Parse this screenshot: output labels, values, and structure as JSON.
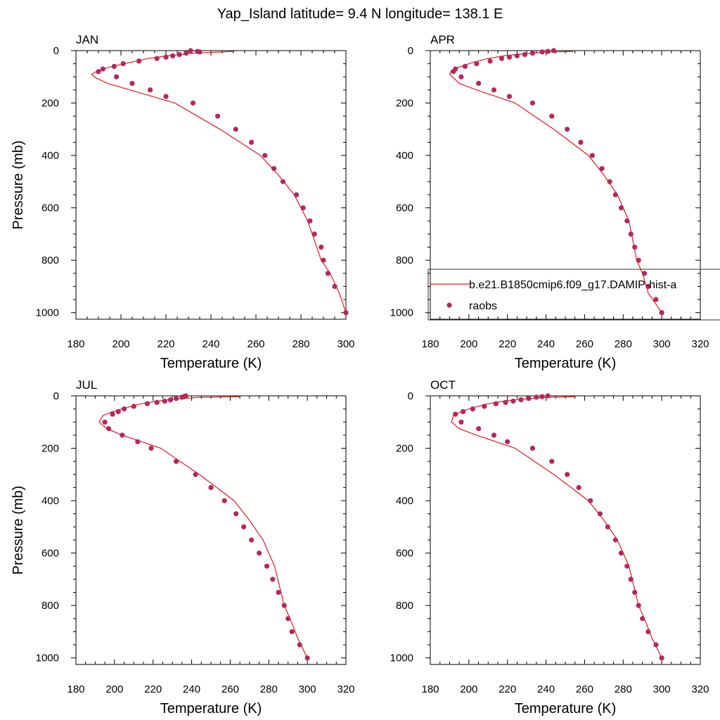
{
  "title": "Yap_Island  latitude= 9.4 N longitude= 138.1 E",
  "colors": {
    "model": "#e31a1c",
    "obs": "#b5285a"
  },
  "legend": {
    "model_label": "b.e21.B1850cmip6.f09_g17.DAMIP-hist-a",
    "obs_label": "raobs"
  },
  "chart_data": [
    {
      "type": "line",
      "panel_label": "JAN",
      "xlabel": "Temperature (K)",
      "ylabel": "Pressure (mb)",
      "xlim": [
        180,
        300
      ],
      "ylim": [
        1025,
        0
      ],
      "xticks": [
        180,
        200,
        220,
        240,
        260,
        280,
        300
      ],
      "yticks": [
        0,
        200,
        400,
        600,
        800,
        1000
      ],
      "series": [
        {
          "name": "b.e21.B1850cmip6.f09_g17.DAMIP-hist-a",
          "kind": "line",
          "x": [
            250,
            232,
            220,
            212,
            204,
            196,
            190,
            187,
            188,
            194,
            204,
            214,
            224,
            234,
            244,
            253,
            262,
            270,
            277,
            283,
            289,
            293,
            297,
            300
          ],
          "y": [
            3,
            10,
            20,
            30,
            45,
            60,
            75,
            90,
            100,
            125,
            150,
            175,
            200,
            250,
            300,
            350,
            400,
            475,
            550,
            650,
            800,
            850,
            925,
            1000
          ]
        },
        {
          "name": "raobs",
          "kind": "scatter",
          "x": [
            235,
            234,
            231,
            229,
            226,
            223,
            220,
            216,
            208,
            201,
            197,
            192,
            190,
            198,
            205,
            213,
            220,
            232,
            243,
            251,
            258,
            264,
            268,
            272,
            278,
            281,
            284,
            286,
            289,
            290,
            292,
            295,
            300
          ],
          "y": [
            5,
            3,
            0,
            10,
            15,
            20,
            25,
            30,
            40,
            50,
            60,
            70,
            80,
            100,
            125,
            150,
            175,
            200,
            250,
            300,
            350,
            400,
            450,
            500,
            550,
            600,
            650,
            700,
            750,
            800,
            850,
            900,
            1000
          ]
        }
      ]
    },
    {
      "type": "line",
      "panel_label": "APR",
      "xlabel": "Temperature (K)",
      "ylabel": "",
      "xlim": [
        180,
        320
      ],
      "ylim": [
        1025,
        0
      ],
      "xticks": [
        180,
        200,
        220,
        240,
        260,
        280,
        300,
        320
      ],
      "yticks": [
        0,
        200,
        400,
        600,
        800,
        1000
      ],
      "series": [
        {
          "name": "b.e21.B1850cmip6.f09_g17.DAMIP-hist-a",
          "kind": "line",
          "x": [
            254,
            240,
            228,
            218,
            210,
            202,
            196,
            191,
            190,
            195,
            204,
            214,
            224,
            234,
            244,
            253,
            262,
            270,
            277,
            283,
            287,
            290,
            293,
            300
          ],
          "y": [
            3,
            6,
            12,
            20,
            30,
            45,
            60,
            75,
            90,
            125,
            150,
            175,
            200,
            250,
            300,
            350,
            400,
            475,
            550,
            650,
            800,
            850,
            925,
            1000
          ]
        },
        {
          "name": "raobs",
          "kind": "scatter",
          "x": [
            244,
            241,
            238,
            233,
            229,
            225,
            221,
            217,
            211,
            204,
            198,
            193,
            192,
            196,
            205,
            213,
            221,
            233,
            243,
            251,
            258,
            264,
            269,
            273,
            276,
            279,
            282,
            284,
            286,
            288,
            291,
            293,
            297,
            300
          ],
          "y": [
            0,
            3,
            5,
            10,
            15,
            20,
            25,
            30,
            40,
            50,
            60,
            70,
            80,
            100,
            125,
            150,
            175,
            200,
            250,
            300,
            350,
            400,
            450,
            500,
            550,
            600,
            650,
            700,
            750,
            800,
            850,
            900,
            950,
            1000
          ]
        }
      ]
    },
    {
      "type": "line",
      "panel_label": "JUL",
      "xlabel": "Temperature (K)",
      "ylabel": "Pressure (mb)",
      "xlim": [
        180,
        320
      ],
      "ylim": [
        1025,
        0
      ],
      "xticks": [
        180,
        200,
        220,
        240,
        260,
        280,
        300,
        320
      ],
      "yticks": [
        0,
        200,
        400,
        600,
        800,
        1000
      ],
      "series": [
        {
          "name": "b.e21.B1850cmip6.f09_g17.DAMIP-hist-a",
          "kind": "line",
          "x": [
            265,
            244,
            232,
            222,
            214,
            206,
            199,
            194,
            192,
            196,
            204,
            214,
            224,
            234,
            244,
            253,
            262,
            270,
            277,
            283,
            288,
            291,
            295,
            300
          ],
          "y": [
            3,
            6,
            12,
            20,
            30,
            45,
            60,
            75,
            100,
            125,
            150,
            175,
            200,
            250,
            300,
            350,
            400,
            475,
            550,
            650,
            800,
            850,
            925,
            1000
          ]
        },
        {
          "name": "raobs",
          "kind": "scatter",
          "x": [
            237,
            236,
            235,
            232,
            229,
            226,
            222,
            217,
            210,
            205,
            202,
            199,
            195,
            197,
            204,
            212,
            219,
            232,
            242,
            250,
            257,
            263,
            267,
            271,
            275,
            279,
            282,
            285,
            288,
            290,
            292,
            296,
            300
          ],
          "y": [
            0,
            3,
            5,
            10,
            15,
            20,
            25,
            30,
            40,
            50,
            60,
            70,
            100,
            125,
            150,
            175,
            200,
            250,
            300,
            350,
            400,
            450,
            500,
            550,
            600,
            650,
            700,
            750,
            800,
            850,
            900,
            950,
            1000
          ]
        }
      ]
    },
    {
      "type": "line",
      "panel_label": "OCT",
      "xlabel": "Temperature (K)",
      "ylabel": "",
      "xlim": [
        180,
        320
      ],
      "ylim": [
        1025,
        0
      ],
      "xticks": [
        180,
        200,
        220,
        240,
        260,
        280,
        300,
        320
      ],
      "yticks": [
        0,
        200,
        400,
        600,
        800,
        1000
      ],
      "series": [
        {
          "name": "b.e21.B1850cmip6.f09_g17.DAMIP-hist-a",
          "kind": "line",
          "x": [
            255,
            240,
            228,
            218,
            210,
            202,
            196,
            192,
            191,
            195,
            204,
            214,
            224,
            234,
            244,
            253,
            262,
            270,
            277,
            283,
            288,
            291,
            295,
            300
          ],
          "y": [
            3,
            6,
            12,
            20,
            30,
            45,
            60,
            75,
            100,
            125,
            150,
            175,
            200,
            250,
            300,
            350,
            400,
            475,
            550,
            650,
            800,
            850,
            925,
            1000
          ]
        },
        {
          "name": "raobs",
          "kind": "scatter",
          "x": [
            241,
            238,
            235,
            231,
            227,
            223,
            219,
            214,
            208,
            202,
            197,
            193,
            196,
            205,
            213,
            220,
            233,
            243,
            251,
            257,
            263,
            268,
            272,
            276,
            279,
            282,
            284,
            286,
            288,
            290,
            293,
            297,
            300
          ],
          "y": [
            0,
            3,
            5,
            10,
            15,
            20,
            25,
            30,
            40,
            50,
            60,
            70,
            100,
            125,
            150,
            175,
            200,
            250,
            300,
            350,
            400,
            450,
            500,
            550,
            600,
            650,
            700,
            750,
            800,
            850,
            900,
            950,
            1000
          ]
        }
      ]
    }
  ]
}
